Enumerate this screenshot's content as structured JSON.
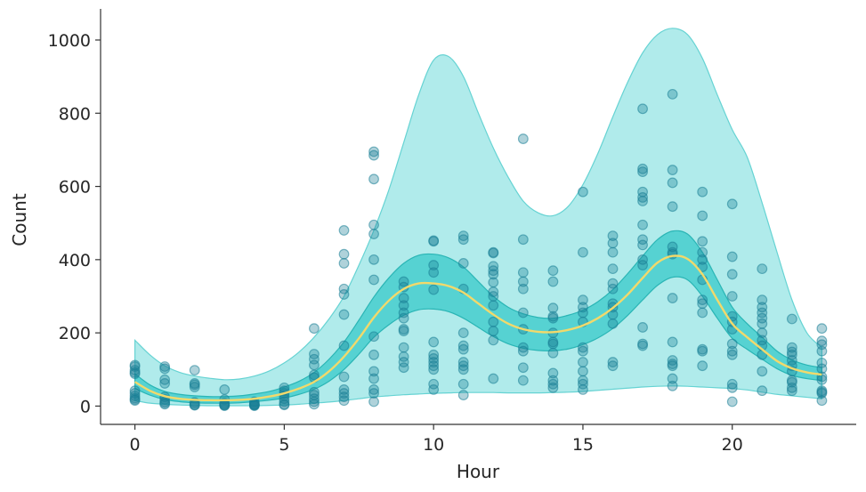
{
  "chart_data": {
    "type": "scatter",
    "xlabel": "Hour",
    "ylabel": "Count",
    "xlim": [
      -1.15,
      24.15
    ],
    "ylim": [
      -50,
      1085
    ],
    "x_ticks": [
      0,
      5,
      10,
      15,
      20
    ],
    "y_ticks": [
      0,
      200,
      400,
      600,
      800,
      1000
    ],
    "grid": false,
    "colors": {
      "points": "#1a7f95",
      "outer_band": "#b0ebeb",
      "outer_band_edge": "#66d3d3",
      "inner_band": "#4ccfcf",
      "inner_band_edge": "#2ab5b5",
      "mean_line": "#f2d96b",
      "axis": "#333333"
    },
    "points": [
      {
        "x": 0,
        "y": 112
      },
      {
        "x": 0,
        "y": 108
      },
      {
        "x": 0,
        "y": 98
      },
      {
        "x": 0,
        "y": 92
      },
      {
        "x": 0,
        "y": 88
      },
      {
        "x": 0,
        "y": 42
      },
      {
        "x": 0,
        "y": 35
      },
      {
        "x": 0,
        "y": 28
      },
      {
        "x": 0,
        "y": 22
      },
      {
        "x": 0,
        "y": 18
      },
      {
        "x": 0,
        "y": 15
      },
      {
        "x": 1,
        "y": 108
      },
      {
        "x": 1,
        "y": 102
      },
      {
        "x": 1,
        "y": 72
      },
      {
        "x": 1,
        "y": 62
      },
      {
        "x": 1,
        "y": 25
      },
      {
        "x": 1,
        "y": 18
      },
      {
        "x": 1,
        "y": 12
      },
      {
        "x": 1,
        "y": 8
      },
      {
        "x": 1,
        "y": 5
      },
      {
        "x": 2,
        "y": 98
      },
      {
        "x": 2,
        "y": 62
      },
      {
        "x": 2,
        "y": 58
      },
      {
        "x": 2,
        "y": 52
      },
      {
        "x": 2,
        "y": 10
      },
      {
        "x": 2,
        "y": 6
      },
      {
        "x": 2,
        "y": 3
      },
      {
        "x": 2,
        "y": 2
      },
      {
        "x": 3,
        "y": 45
      },
      {
        "x": 3,
        "y": 18
      },
      {
        "x": 3,
        "y": 8
      },
      {
        "x": 3,
        "y": 5
      },
      {
        "x": 3,
        "y": 3
      },
      {
        "x": 3,
        "y": 2
      },
      {
        "x": 3,
        "y": 1
      },
      {
        "x": 4,
        "y": 12
      },
      {
        "x": 4,
        "y": 8
      },
      {
        "x": 4,
        "y": 5
      },
      {
        "x": 4,
        "y": 4
      },
      {
        "x": 4,
        "y": 3
      },
      {
        "x": 4,
        "y": 2
      },
      {
        "x": 4,
        "y": 1
      },
      {
        "x": 5,
        "y": 50
      },
      {
        "x": 5,
        "y": 42
      },
      {
        "x": 5,
        "y": 35
      },
      {
        "x": 5,
        "y": 28
      },
      {
        "x": 5,
        "y": 20
      },
      {
        "x": 5,
        "y": 12
      },
      {
        "x": 5,
        "y": 5
      },
      {
        "x": 5,
        "y": 3
      },
      {
        "x": 6,
        "y": 212
      },
      {
        "x": 6,
        "y": 142
      },
      {
        "x": 6,
        "y": 128
      },
      {
        "x": 6,
        "y": 112
      },
      {
        "x": 6,
        "y": 85
      },
      {
        "x": 6,
        "y": 78
      },
      {
        "x": 6,
        "y": 38
      },
      {
        "x": 6,
        "y": 30
      },
      {
        "x": 6,
        "y": 20
      },
      {
        "x": 6,
        "y": 12
      },
      {
        "x": 6,
        "y": 5
      },
      {
        "x": 7,
        "y": 480
      },
      {
        "x": 7,
        "y": 415
      },
      {
        "x": 7,
        "y": 390
      },
      {
        "x": 7,
        "y": 320
      },
      {
        "x": 7,
        "y": 305
      },
      {
        "x": 7,
        "y": 250
      },
      {
        "x": 7,
        "y": 165
      },
      {
        "x": 7,
        "y": 80
      },
      {
        "x": 7,
        "y": 45
      },
      {
        "x": 7,
        "y": 35
      },
      {
        "x": 7,
        "y": 25
      },
      {
        "x": 7,
        "y": 15
      },
      {
        "x": 8,
        "y": 695
      },
      {
        "x": 8,
        "y": 685
      },
      {
        "x": 8,
        "y": 620
      },
      {
        "x": 8,
        "y": 495
      },
      {
        "x": 8,
        "y": 470
      },
      {
        "x": 8,
        "y": 400
      },
      {
        "x": 8,
        "y": 345
      },
      {
        "x": 8,
        "y": 190
      },
      {
        "x": 8,
        "y": 140
      },
      {
        "x": 8,
        "y": 95
      },
      {
        "x": 8,
        "y": 75
      },
      {
        "x": 8,
        "y": 45
      },
      {
        "x": 8,
        "y": 35
      },
      {
        "x": 8,
        "y": 12
      },
      {
        "x": 9,
        "y": 340
      },
      {
        "x": 9,
        "y": 325
      },
      {
        "x": 9,
        "y": 295
      },
      {
        "x": 9,
        "y": 275
      },
      {
        "x": 9,
        "y": 255
      },
      {
        "x": 9,
        "y": 240
      },
      {
        "x": 9,
        "y": 210
      },
      {
        "x": 9,
        "y": 205
      },
      {
        "x": 9,
        "y": 160
      },
      {
        "x": 9,
        "y": 135
      },
      {
        "x": 9,
        "y": 120
      },
      {
        "x": 9,
        "y": 105
      },
      {
        "x": 10,
        "y": 452
      },
      {
        "x": 10,
        "y": 450
      },
      {
        "x": 10,
        "y": 385
      },
      {
        "x": 10,
        "y": 365
      },
      {
        "x": 10,
        "y": 318
      },
      {
        "x": 10,
        "y": 175
      },
      {
        "x": 10,
        "y": 140
      },
      {
        "x": 10,
        "y": 130
      },
      {
        "x": 10,
        "y": 120
      },
      {
        "x": 10,
        "y": 110
      },
      {
        "x": 10,
        "y": 100
      },
      {
        "x": 10,
        "y": 60
      },
      {
        "x": 10,
        "y": 45
      },
      {
        "x": 11,
        "y": 465
      },
      {
        "x": 11,
        "y": 455
      },
      {
        "x": 11,
        "y": 390
      },
      {
        "x": 11,
        "y": 320
      },
      {
        "x": 11,
        "y": 200
      },
      {
        "x": 11,
        "y": 165
      },
      {
        "x": 11,
        "y": 155
      },
      {
        "x": 11,
        "y": 120
      },
      {
        "x": 11,
        "y": 110
      },
      {
        "x": 11,
        "y": 100
      },
      {
        "x": 11,
        "y": 60
      },
      {
        "x": 11,
        "y": 30
      },
      {
        "x": 12,
        "y": 420
      },
      {
        "x": 12,
        "y": 418
      },
      {
        "x": 12,
        "y": 382
      },
      {
        "x": 12,
        "y": 370
      },
      {
        "x": 12,
        "y": 360
      },
      {
        "x": 12,
        "y": 338
      },
      {
        "x": 12,
        "y": 312
      },
      {
        "x": 12,
        "y": 300
      },
      {
        "x": 12,
        "y": 275
      },
      {
        "x": 12,
        "y": 230
      },
      {
        "x": 12,
        "y": 205
      },
      {
        "x": 12,
        "y": 180
      },
      {
        "x": 12,
        "y": 75
      },
      {
        "x": 13,
        "y": 730
      },
      {
        "x": 13,
        "y": 455
      },
      {
        "x": 13,
        "y": 365
      },
      {
        "x": 13,
        "y": 340
      },
      {
        "x": 13,
        "y": 320
      },
      {
        "x": 13,
        "y": 255
      },
      {
        "x": 13,
        "y": 210
      },
      {
        "x": 13,
        "y": 160
      },
      {
        "x": 13,
        "y": 150
      },
      {
        "x": 13,
        "y": 105
      },
      {
        "x": 13,
        "y": 70
      },
      {
        "x": 14,
        "y": 370
      },
      {
        "x": 14,
        "y": 340
      },
      {
        "x": 14,
        "y": 268
      },
      {
        "x": 14,
        "y": 245
      },
      {
        "x": 14,
        "y": 240
      },
      {
        "x": 14,
        "y": 200
      },
      {
        "x": 14,
        "y": 175
      },
      {
        "x": 14,
        "y": 170
      },
      {
        "x": 14,
        "y": 145
      },
      {
        "x": 14,
        "y": 90
      },
      {
        "x": 14,
        "y": 70
      },
      {
        "x": 14,
        "y": 60
      },
      {
        "x": 14,
        "y": 50
      },
      {
        "x": 15,
        "y": 585
      },
      {
        "x": 15,
        "y": 420
      },
      {
        "x": 15,
        "y": 290
      },
      {
        "x": 15,
        "y": 270
      },
      {
        "x": 15,
        "y": 255
      },
      {
        "x": 15,
        "y": 230
      },
      {
        "x": 15,
        "y": 160
      },
      {
        "x": 15,
        "y": 150
      },
      {
        "x": 15,
        "y": 120
      },
      {
        "x": 15,
        "y": 95
      },
      {
        "x": 15,
        "y": 70
      },
      {
        "x": 15,
        "y": 60
      },
      {
        "x": 15,
        "y": 45
      },
      {
        "x": 16,
        "y": 465
      },
      {
        "x": 16,
        "y": 445
      },
      {
        "x": 16,
        "y": 420
      },
      {
        "x": 16,
        "y": 375
      },
      {
        "x": 16,
        "y": 335
      },
      {
        "x": 16,
        "y": 320
      },
      {
        "x": 16,
        "y": 280
      },
      {
        "x": 16,
        "y": 270
      },
      {
        "x": 16,
        "y": 250
      },
      {
        "x": 16,
        "y": 225
      },
      {
        "x": 16,
        "y": 120
      },
      {
        "x": 16,
        "y": 110
      },
      {
        "x": 17,
        "y": 812
      },
      {
        "x": 17,
        "y": 648
      },
      {
        "x": 17,
        "y": 640
      },
      {
        "x": 17,
        "y": 585
      },
      {
        "x": 17,
        "y": 570
      },
      {
        "x": 17,
        "y": 560
      },
      {
        "x": 17,
        "y": 495
      },
      {
        "x": 17,
        "y": 455
      },
      {
        "x": 17,
        "y": 440
      },
      {
        "x": 17,
        "y": 400
      },
      {
        "x": 17,
        "y": 385
      },
      {
        "x": 17,
        "y": 215
      },
      {
        "x": 17,
        "y": 170
      },
      {
        "x": 17,
        "y": 165
      },
      {
        "x": 18,
        "y": 852
      },
      {
        "x": 18,
        "y": 645
      },
      {
        "x": 18,
        "y": 610
      },
      {
        "x": 18,
        "y": 545
      },
      {
        "x": 18,
        "y": 435
      },
      {
        "x": 18,
        "y": 420
      },
      {
        "x": 18,
        "y": 415
      },
      {
        "x": 18,
        "y": 295
      },
      {
        "x": 18,
        "y": 175
      },
      {
        "x": 18,
        "y": 125
      },
      {
        "x": 18,
        "y": 115
      },
      {
        "x": 18,
        "y": 110
      },
      {
        "x": 18,
        "y": 75
      },
      {
        "x": 18,
        "y": 55
      },
      {
        "x": 19,
        "y": 585
      },
      {
        "x": 19,
        "y": 520
      },
      {
        "x": 19,
        "y": 450
      },
      {
        "x": 19,
        "y": 420
      },
      {
        "x": 19,
        "y": 400
      },
      {
        "x": 19,
        "y": 380
      },
      {
        "x": 19,
        "y": 345
      },
      {
        "x": 19,
        "y": 290
      },
      {
        "x": 19,
        "y": 280
      },
      {
        "x": 19,
        "y": 255
      },
      {
        "x": 19,
        "y": 155
      },
      {
        "x": 19,
        "y": 150
      },
      {
        "x": 19,
        "y": 110
      },
      {
        "x": 20,
        "y": 552
      },
      {
        "x": 20,
        "y": 408
      },
      {
        "x": 20,
        "y": 360
      },
      {
        "x": 20,
        "y": 300
      },
      {
        "x": 20,
        "y": 245
      },
      {
        "x": 20,
        "y": 230
      },
      {
        "x": 20,
        "y": 210
      },
      {
        "x": 20,
        "y": 170
      },
      {
        "x": 20,
        "y": 150
      },
      {
        "x": 20,
        "y": 140
      },
      {
        "x": 20,
        "y": 60
      },
      {
        "x": 20,
        "y": 50
      },
      {
        "x": 20,
        "y": 12
      },
      {
        "x": 21,
        "y": 375
      },
      {
        "x": 21,
        "y": 290
      },
      {
        "x": 21,
        "y": 270
      },
      {
        "x": 21,
        "y": 255
      },
      {
        "x": 21,
        "y": 240
      },
      {
        "x": 21,
        "y": 225
      },
      {
        "x": 21,
        "y": 200
      },
      {
        "x": 21,
        "y": 180
      },
      {
        "x": 21,
        "y": 165
      },
      {
        "x": 21,
        "y": 140
      },
      {
        "x": 21,
        "y": 95
      },
      {
        "x": 21,
        "y": 42
      },
      {
        "x": 22,
        "y": 238
      },
      {
        "x": 22,
        "y": 160
      },
      {
        "x": 22,
        "y": 148
      },
      {
        "x": 22,
        "y": 140
      },
      {
        "x": 22,
        "y": 125
      },
      {
        "x": 22,
        "y": 110
      },
      {
        "x": 22,
        "y": 95
      },
      {
        "x": 22,
        "y": 70
      },
      {
        "x": 22,
        "y": 65
      },
      {
        "x": 22,
        "y": 50
      },
      {
        "x": 22,
        "y": 42
      },
      {
        "x": 23,
        "y": 212
      },
      {
        "x": 23,
        "y": 178
      },
      {
        "x": 23,
        "y": 168
      },
      {
        "x": 23,
        "y": 150
      },
      {
        "x": 23,
        "y": 118
      },
      {
        "x": 23,
        "y": 102
      },
      {
        "x": 23,
        "y": 80
      },
      {
        "x": 23,
        "y": 72
      },
      {
        "x": 23,
        "y": 42
      },
      {
        "x": 23,
        "y": 38
      },
      {
        "x": 23,
        "y": 35
      },
      {
        "x": 23,
        "y": 15
      }
    ],
    "curve_x": [
      0,
      0.5,
      1,
      1.5,
      2,
      2.5,
      3,
      3.5,
      4,
      4.5,
      5,
      5.5,
      6,
      6.5,
      7,
      7.5,
      8,
      8.5,
      9,
      9.5,
      10,
      10.5,
      11,
      11.5,
      12,
      12.5,
      13,
      13.5,
      14,
      14.5,
      15,
      15.5,
      16,
      16.5,
      17,
      17.5,
      18,
      18.5,
      19,
      19.5,
      20,
      20.5,
      21,
      21.5,
      22,
      22.5,
      23
    ],
    "outer_upper": [
      180,
      140,
      110,
      92,
      82,
      76,
      72,
      74,
      82,
      96,
      118,
      148,
      188,
      238,
      300,
      385,
      480,
      590,
      720,
      850,
      945,
      955,
      900,
      800,
      705,
      625,
      560,
      528,
      520,
      545,
      605,
      690,
      790,
      885,
      965,
      1015,
      1032,
      1015,
      950,
      850,
      755,
      680,
      555,
      420,
      290,
      200,
      160
    ],
    "outer_lower": [
      15,
      8,
      5,
      3,
      2,
      1,
      1,
      1,
      1,
      2,
      3,
      5,
      8,
      11,
      15,
      20,
      25,
      28,
      31,
      33,
      35,
      36,
      37,
      37,
      37,
      36,
      36,
      36,
      37,
      38,
      40,
      43,
      46,
      49,
      52,
      54,
      55,
      54,
      52,
      50,
      48,
      44,
      38,
      32,
      28,
      24,
      20
    ],
    "inner_upper": [
      88,
      58,
      40,
      32,
      28,
      26,
      26,
      28,
      33,
      40,
      52,
      68,
      92,
      128,
      175,
      235,
      298,
      350,
      390,
      412,
      415,
      405,
      380,
      340,
      300,
      270,
      252,
      242,
      240,
      248,
      262,
      285,
      318,
      362,
      410,
      455,
      478,
      470,
      420,
      345,
      270,
      225,
      188,
      150,
      126,
      112,
      105
    ],
    "inner_lower": [
      48,
      30,
      18,
      12,
      9,
      8,
      8,
      9,
      12,
      16,
      22,
      32,
      46,
      68,
      100,
      142,
      188,
      222,
      248,
      263,
      265,
      258,
      240,
      215,
      190,
      170,
      158,
      152,
      151,
      156,
      168,
      186,
      212,
      248,
      290,
      330,
      352,
      345,
      300,
      240,
      185,
      155,
      128,
      102,
      84,
      75,
      70
    ],
    "mean": [
      66,
      42,
      27,
      20,
      17,
      16,
      16,
      17,
      20,
      26,
      35,
      48,
      66,
      95,
      135,
      185,
      242,
      288,
      320,
      335,
      335,
      328,
      310,
      280,
      250,
      225,
      210,
      203,
      202,
      208,
      220,
      240,
      268,
      305,
      350,
      392,
      410,
      402,
      360,
      290,
      225,
      188,
      155,
      123,
      103,
      92,
      86
    ]
  }
}
